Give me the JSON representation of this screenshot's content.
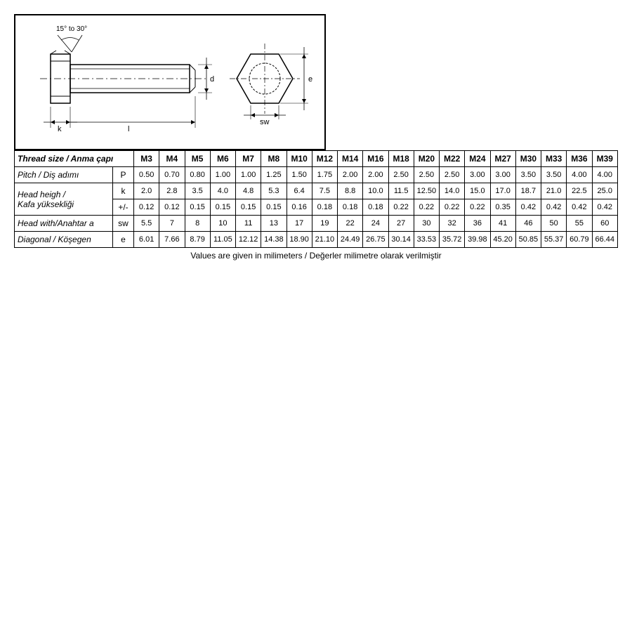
{
  "diagram": {
    "angle_label": "15° to 30°",
    "dim_k": "k",
    "dim_l": "l",
    "dim_d": "d",
    "dim_sw": "sw",
    "dim_e": "e",
    "stroke": "#000000",
    "dash": "4,3"
  },
  "table": {
    "header_label": "Thread size  / Anma çapı",
    "sizes": [
      "M3",
      "M4",
      "M5",
      "M6",
      "M7",
      "M8",
      "M10",
      "M12",
      "M14",
      "M16",
      "M18",
      "M20",
      "M22",
      "M24",
      "M27",
      "M30",
      "M33",
      "M36",
      "M39"
    ],
    "rows": [
      {
        "label": "Pitch / Diş adımı",
        "symbol": "P",
        "values": [
          "0.50",
          "0.70",
          "0.80",
          "1.00",
          "1.00",
          "1.25",
          "1.50",
          "1.75",
          "2.00",
          "2.00",
          "2.50",
          "2.50",
          "2.50",
          "3.00",
          "3.00",
          "3.50",
          "3.50",
          "4.00",
          "4.00"
        ]
      },
      {
        "label": "Head heigh / Kafa yüksekliği",
        "symbol": "k",
        "rowspan": 2,
        "values": [
          "2.0",
          "2.8",
          "3.5",
          "4.0",
          "4.8",
          "5.3",
          "6.4",
          "7.5",
          "8.8",
          "10.0",
          "11.5",
          "12.50",
          "14.0",
          "15.0",
          "17.0",
          "18.7",
          "21.0",
          "22.5",
          "25.0"
        ]
      },
      {
        "symbol": "+/-",
        "values": [
          "0.12",
          "0.12",
          "0.15",
          "0.15",
          "0.15",
          "0.15",
          "0.16",
          "0.18",
          "0.18",
          "0.18",
          "0.22",
          "0.22",
          "0.22",
          "0.22",
          "0.35",
          "0.42",
          "0.42",
          "0.42",
          "0.42"
        ]
      },
      {
        "label": "Head with/Anahtar a",
        "symbol": "sw",
        "values": [
          "5.5",
          "7",
          "8",
          "10",
          "11",
          "13",
          "17",
          "19",
          "22",
          "24",
          "27",
          "30",
          "32",
          "36",
          "41",
          "46",
          "50",
          "55",
          "60"
        ]
      },
      {
        "label": "Diagonal / Köşegen",
        "symbol": "e",
        "values": [
          "6.01",
          "7.66",
          "8.79",
          "11.05",
          "12.12",
          "14.38",
          "18.90",
          "21.10",
          "24.49",
          "26.75",
          "30.14",
          "33.53",
          "35.72",
          "39.98",
          "45.20",
          "50.85",
          "55.37",
          "60.79",
          "66.44"
        ]
      }
    ],
    "footnote": "Values are given in milimeters / Değerler milimetre olarak verilmiştir"
  },
  "colors": {
    "border": "#000000",
    "bg": "#ffffff"
  }
}
